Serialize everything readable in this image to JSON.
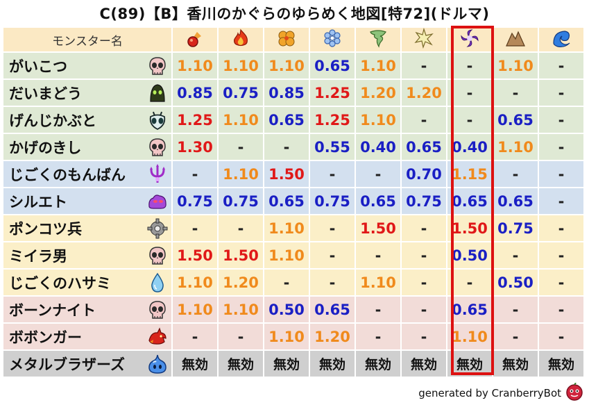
{
  "title": "C(89)【B】香川のかぐらのゆらめく地図[特72](ドルマ)",
  "header": {
    "name_col": "モンスター名",
    "elements": [
      {
        "icon": "fire-orb-icon"
      },
      {
        "icon": "flame-icon"
      },
      {
        "icon": "explosion-icon"
      },
      {
        "icon": "ice-icon"
      },
      {
        "icon": "wind-icon"
      },
      {
        "icon": "lightning-icon"
      },
      {
        "icon": "dark-icon"
      },
      {
        "icon": "earth-icon"
      },
      {
        "icon": "water-icon"
      }
    ]
  },
  "colors": {
    "low": "#1a1fc4",
    "mid": "#f08a1c",
    "high": "#e01818",
    "dash": "#222222",
    "immune": "#111111"
  },
  "rows": [
    {
      "name": "がいこつ",
      "icon": "skull-icon",
      "bg": "green",
      "values": [
        [
          "1.10",
          "mid"
        ],
        [
          "1.10",
          "mid"
        ],
        [
          "1.10",
          "mid"
        ],
        [
          "0.65",
          "low"
        ],
        [
          "1.10",
          "mid"
        ],
        [
          "-",
          "dash"
        ],
        [
          "-",
          "dash"
        ],
        [
          "1.10",
          "mid"
        ],
        [
          "-",
          "dash"
        ]
      ]
    },
    {
      "name": "だいまどう",
      "icon": "hooded-ghost-icon",
      "bg": "green",
      "values": [
        [
          "0.85",
          "low"
        ],
        [
          "0.75",
          "low"
        ],
        [
          "0.85",
          "low"
        ],
        [
          "1.25",
          "high"
        ],
        [
          "1.20",
          "mid"
        ],
        [
          "1.20",
          "mid"
        ],
        [
          "-",
          "dash"
        ],
        [
          "-",
          "dash"
        ],
        [
          "-",
          "dash"
        ]
      ]
    },
    {
      "name": "げんじかぶと",
      "icon": "insect-icon",
      "bg": "green",
      "values": [
        [
          "1.25",
          "high"
        ],
        [
          "1.10",
          "mid"
        ],
        [
          "0.65",
          "low"
        ],
        [
          "1.25",
          "high"
        ],
        [
          "1.10",
          "mid"
        ],
        [
          "-",
          "dash"
        ],
        [
          "-",
          "dash"
        ],
        [
          "0.65",
          "low"
        ],
        [
          "-",
          "dash"
        ]
      ]
    },
    {
      "name": "かげのきし",
      "icon": "skull-icon",
      "bg": "green",
      "values": [
        [
          "1.30",
          "high"
        ],
        [
          "-",
          "dash"
        ],
        [
          "-",
          "dash"
        ],
        [
          "0.55",
          "low"
        ],
        [
          "0.40",
          "low"
        ],
        [
          "0.65",
          "low"
        ],
        [
          "0.40",
          "low"
        ],
        [
          "1.10",
          "mid"
        ],
        [
          "-",
          "dash"
        ]
      ]
    },
    {
      "name": "じごくのもんばん",
      "icon": "demon-icon",
      "bg": "blue",
      "values": [
        [
          "-",
          "dash"
        ],
        [
          "1.10",
          "mid"
        ],
        [
          "1.50",
          "high"
        ],
        [
          "-",
          "dash"
        ],
        [
          "-",
          "dash"
        ],
        [
          "0.70",
          "low"
        ],
        [
          "1.15",
          "mid"
        ],
        [
          "-",
          "dash"
        ],
        [
          "-",
          "dash"
        ]
      ]
    },
    {
      "name": "シルエト",
      "icon": "slime-purple-icon",
      "bg": "blue",
      "values": [
        [
          "0.75",
          "low"
        ],
        [
          "0.75",
          "low"
        ],
        [
          "0.65",
          "low"
        ],
        [
          "0.75",
          "low"
        ],
        [
          "0.65",
          "low"
        ],
        [
          "0.75",
          "low"
        ],
        [
          "0.65",
          "low"
        ],
        [
          "0.65",
          "low"
        ],
        [
          "-",
          "dash"
        ]
      ]
    },
    {
      "name": "ポンコツ兵",
      "icon": "gear-icon",
      "bg": "yellow",
      "values": [
        [
          "-",
          "dash"
        ],
        [
          "-",
          "dash"
        ],
        [
          "1.10",
          "mid"
        ],
        [
          "-",
          "dash"
        ],
        [
          "1.50",
          "high"
        ],
        [
          "-",
          "dash"
        ],
        [
          "1.50",
          "high"
        ],
        [
          "0.75",
          "low"
        ],
        [
          "-",
          "dash"
        ]
      ]
    },
    {
      "name": "ミイラ男",
      "icon": "skull-icon",
      "bg": "yellow",
      "values": [
        [
          "1.50",
          "high"
        ],
        [
          "1.50",
          "high"
        ],
        [
          "1.10",
          "mid"
        ],
        [
          "-",
          "dash"
        ],
        [
          "-",
          "dash"
        ],
        [
          "-",
          "dash"
        ],
        [
          "0.50",
          "low"
        ],
        [
          "-",
          "dash"
        ],
        [
          "-",
          "dash"
        ]
      ]
    },
    {
      "name": "じごくのハサミ",
      "icon": "water-drop-icon",
      "bg": "yellow",
      "values": [
        [
          "1.10",
          "mid"
        ],
        [
          "1.20",
          "mid"
        ],
        [
          "-",
          "dash"
        ],
        [
          "-",
          "dash"
        ],
        [
          "1.10",
          "mid"
        ],
        [
          "-",
          "dash"
        ],
        [
          "-",
          "dash"
        ],
        [
          "0.50",
          "low"
        ],
        [
          "-",
          "dash"
        ]
      ]
    },
    {
      "name": "ボーンナイト",
      "icon": "skull-icon",
      "bg": "pink",
      "values": [
        [
          "1.10",
          "mid"
        ],
        [
          "1.10",
          "mid"
        ],
        [
          "0.50",
          "low"
        ],
        [
          "0.65",
          "low"
        ],
        [
          "-",
          "dash"
        ],
        [
          "-",
          "dash"
        ],
        [
          "0.65",
          "low"
        ],
        [
          "-",
          "dash"
        ],
        [
          "-",
          "dash"
        ]
      ]
    },
    {
      "name": "ボボンガー",
      "icon": "dragon-icon",
      "bg": "pink",
      "values": [
        [
          "-",
          "dash"
        ],
        [
          "-",
          "dash"
        ],
        [
          "1.10",
          "mid"
        ],
        [
          "1.20",
          "mid"
        ],
        [
          "-",
          "dash"
        ],
        [
          "-",
          "dash"
        ],
        [
          "1.10",
          "mid"
        ],
        [
          "-",
          "dash"
        ],
        [
          "-",
          "dash"
        ]
      ]
    },
    {
      "name": "メタルブラザーズ",
      "icon": "metal-slime-icon",
      "bg": "gray",
      "values": [
        [
          "無効",
          "immune"
        ],
        [
          "無効",
          "immune"
        ],
        [
          "無効",
          "immune"
        ],
        [
          "無効",
          "immune"
        ],
        [
          "無効",
          "immune"
        ],
        [
          "無効",
          "immune"
        ],
        [
          "無効",
          "immune"
        ],
        [
          "無効",
          "immune"
        ],
        [
          "無効",
          "immune"
        ]
      ]
    }
  ],
  "footer": "generated by CranberryBot"
}
